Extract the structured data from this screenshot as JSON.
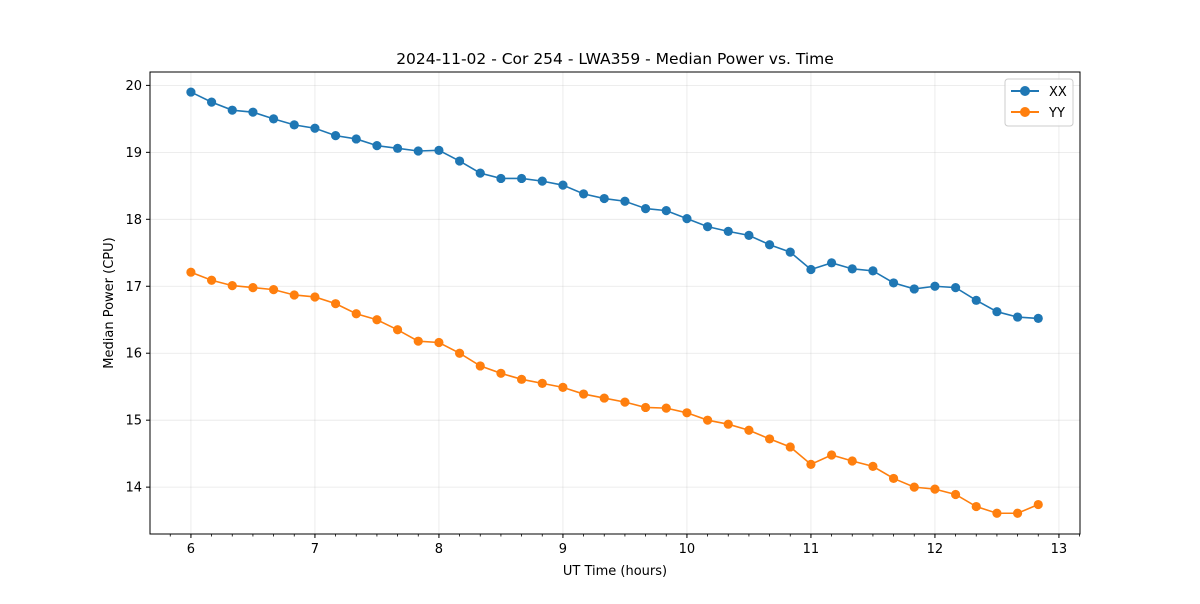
{
  "chart_data": {
    "type": "line",
    "title": "2024-11-02 - Cor 254 - LWA359 - Median Power vs. Time",
    "xlabel": "UT Time (hours)",
    "ylabel": "Median Power (CPU)",
    "xlim": [
      5.67,
      13.17
    ],
    "ylim": [
      13.3,
      20.2
    ],
    "xticks": [
      6,
      7,
      8,
      9,
      10,
      11,
      12,
      13
    ],
    "yticks": [
      14,
      15,
      16,
      17,
      18,
      19,
      20
    ],
    "grid": true,
    "legend_position": "top-right",
    "x": [
      6.0,
      6.1667,
      6.3333,
      6.5,
      6.6667,
      6.8333,
      7.0,
      7.1667,
      7.3333,
      7.5,
      7.6667,
      7.8333,
      8.0,
      8.1667,
      8.3333,
      8.5,
      8.6667,
      8.8333,
      9.0,
      9.1667,
      9.3333,
      9.5,
      9.6667,
      9.8333,
      10.0,
      10.1667,
      10.3333,
      10.5,
      10.6667,
      10.8333,
      11.0,
      11.1667,
      11.3333,
      11.5,
      11.6667,
      11.8333,
      12.0,
      12.1667,
      12.3333,
      12.5,
      12.6667,
      12.8333
    ],
    "series": [
      {
        "name": "XX",
        "color": "#1f77b4",
        "values": [
          19.9,
          19.75,
          19.63,
          19.6,
          19.5,
          19.41,
          19.36,
          19.25,
          19.2,
          19.1,
          19.06,
          19.02,
          19.03,
          18.87,
          18.69,
          18.61,
          18.61,
          18.57,
          18.51,
          18.38,
          18.31,
          18.27,
          18.16,
          18.13,
          18.01,
          17.89,
          17.82,
          17.76,
          17.62,
          17.51,
          17.25,
          17.35,
          17.26,
          17.23,
          17.05,
          16.96,
          17.0,
          16.98,
          16.79,
          16.62,
          16.54,
          16.52
        ]
      },
      {
        "name": "YY",
        "color": "#ff7f0e",
        "values": [
          17.21,
          17.09,
          17.01,
          16.98,
          16.95,
          16.87,
          16.84,
          16.74,
          16.59,
          16.5,
          16.35,
          16.18,
          16.16,
          16.0,
          15.81,
          15.7,
          15.61,
          15.55,
          15.49,
          15.39,
          15.33,
          15.27,
          15.19,
          15.18,
          15.11,
          15.0,
          14.94,
          14.85,
          14.72,
          14.6,
          14.34,
          14.48,
          14.39,
          14.31,
          14.13,
          14.0,
          13.97,
          13.89,
          13.71,
          13.61,
          13.61,
          13.74
        ]
      }
    ]
  }
}
